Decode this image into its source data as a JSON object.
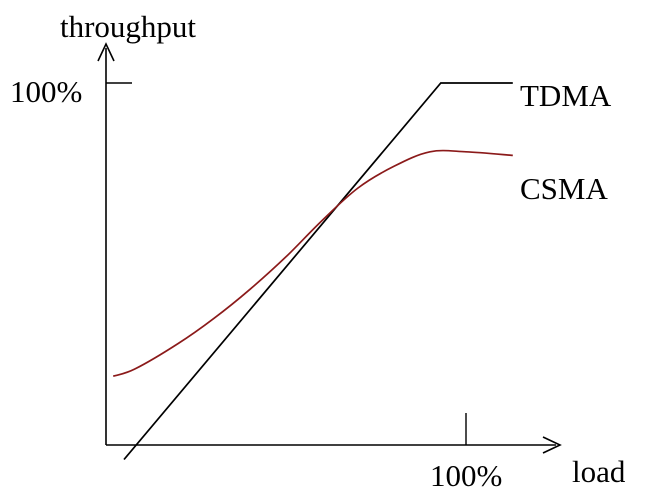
{
  "chart_data": {
    "type": "line",
    "title": "",
    "xlabel": "load",
    "ylabel": "throughput",
    "x_ticks": [
      {
        "value": 100,
        "label": "100%"
      }
    ],
    "y_ticks": [
      {
        "value": 100,
        "label": "100%"
      }
    ],
    "xlim": [
      0,
      100
    ],
    "ylim": [
      0,
      100
    ],
    "grid": false,
    "legend": "inline labels at line ends",
    "series": [
      {
        "name": "TDMA",
        "color": "#000000",
        "x": [
          5,
          93,
          113
        ],
        "y": [
          -4,
          100,
          100
        ]
      },
      {
        "name": "CSMA",
        "color": "#8b1a1a",
        "x": [
          2,
          8,
          20,
          30,
          40,
          50,
          60,
          70,
          80,
          90,
          100,
          113
        ],
        "y": [
          19,
          21,
          28,
          35,
          43,
          52,
          62,
          71,
          77,
          81,
          81,
          80
        ]
      }
    ]
  }
}
